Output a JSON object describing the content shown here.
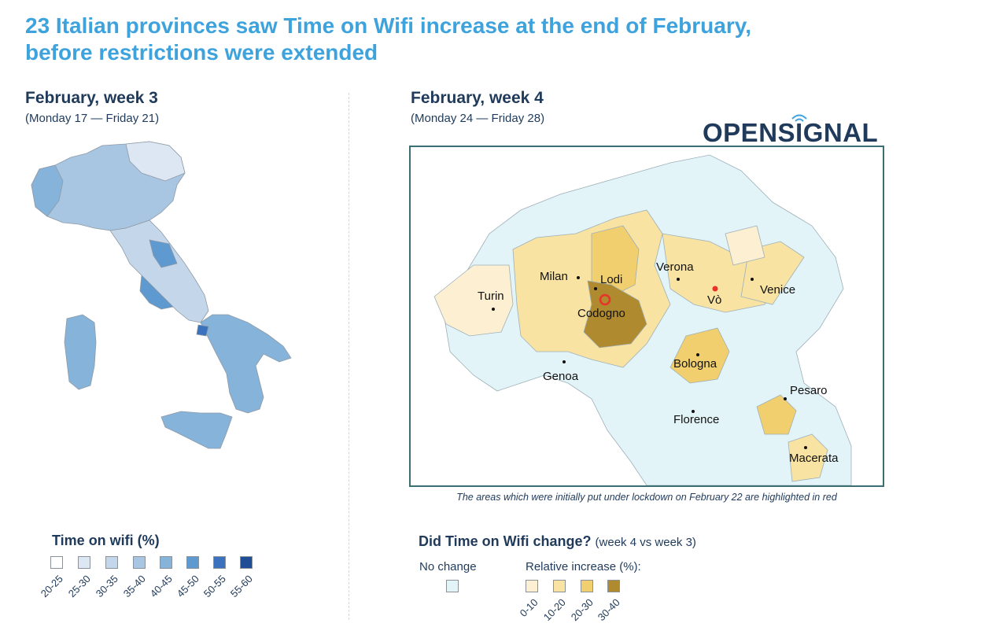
{
  "title_line1": "23 Italian provinces saw Time on Wifi increase at the end of February,",
  "title_line2": "before restrictions were extended",
  "left_panel": {
    "title": "February, week 3",
    "subtitle": "(Monday 17 — Friday 21)"
  },
  "right_panel": {
    "title": "February, week 4",
    "subtitle": "(Monday 24 — Friday 28)"
  },
  "brand": "OPENSIGNAL",
  "caption": "The areas which were initially put under lockdown on February 22 are highlighted in red",
  "cities": [
    {
      "name": "Milan"
    },
    {
      "name": "Lodi"
    },
    {
      "name": "Verona"
    },
    {
      "name": "Turin"
    },
    {
      "name": "Vò"
    },
    {
      "name": "Venice"
    },
    {
      "name": "Codogno"
    },
    {
      "name": "Bologna"
    },
    {
      "name": "Genoa"
    },
    {
      "name": "Pesaro"
    },
    {
      "name": "Florence"
    },
    {
      "name": "Macerata"
    }
  ],
  "legend_left": {
    "title": "Time on wifi (%)",
    "bins": [
      {
        "label": "20-25",
        "color": "#ffffff"
      },
      {
        "label": "25-30",
        "color": "#dde7f3"
      },
      {
        "label": "30-35",
        "color": "#c3d6ea"
      },
      {
        "label": "35-40",
        "color": "#a8c6e1"
      },
      {
        "label": "40-45",
        "color": "#86b3da"
      },
      {
        "label": "45-50",
        "color": "#5e99cf"
      },
      {
        "label": "50-55",
        "color": "#3b72bd"
      },
      {
        "label": "55-60",
        "color": "#1f4e97"
      }
    ]
  },
  "legend_right": {
    "title": "Did Time on Wifi change?",
    "note": "(week 4 vs week 3)",
    "no_change_label": "No change",
    "no_change_color": "#e3f4f8",
    "increase_label": "Relative increase (%):",
    "bins": [
      {
        "label": "0-10",
        "color": "#fdf0d2"
      },
      {
        "label": "10-20",
        "color": "#f8e3a3"
      },
      {
        "label": "20-30",
        "color": "#f2cf6e"
      },
      {
        "label": "30-40",
        "color": "#b08a2e"
      }
    ]
  },
  "colors": {
    "title": "#3ea3dc",
    "text": "#1f3a5a",
    "frame": "#3b6f73",
    "lockdown": "#e8322a"
  }
}
